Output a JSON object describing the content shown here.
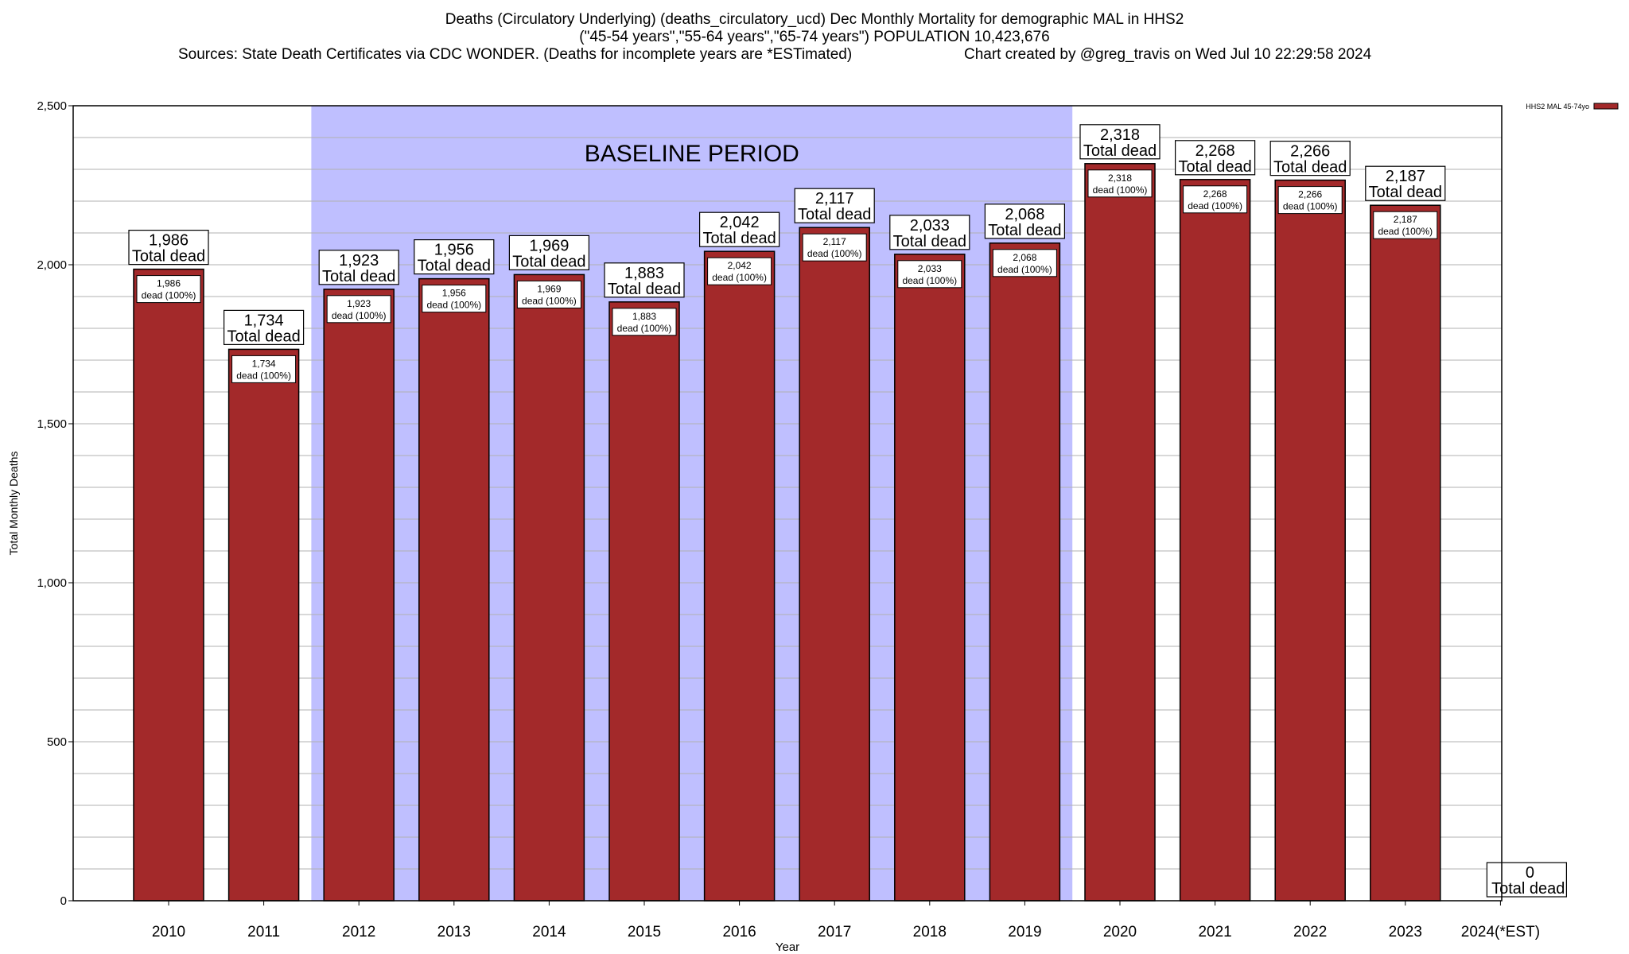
{
  "title": {
    "line1": "Deaths (Circulatory Underlying) (deaths_circulatory_ucd) Dec Monthly Mortality for demographic MAL in HHS2",
    "line2": "(\"45-54 years\",\"55-64 years\",\"65-74 years\") POPULATION 10,423,676",
    "line3_left": "Sources: State Death Certificates via CDC WONDER. (Deaths for incomplete years are *ESTimated)",
    "line3_right": "Chart created by @greg_travis on Wed Jul 10 22:29:58 2024"
  },
  "chart_data": {
    "type": "bar",
    "xlabel": "Year",
    "ylabel": "Total Monthly Deaths",
    "ylim": [
      0,
      2500
    ],
    "yticks": [
      {
        "value": 0,
        "label": "0"
      },
      {
        "value": 500,
        "label": "500"
      },
      {
        "value": 1000,
        "label": "1,000"
      },
      {
        "value": 1500,
        "label": "1,500"
      },
      {
        "value": 2000,
        "label": "2,000"
      },
      {
        "value": 2500,
        "label": "2,500"
      }
    ],
    "minor_grid_step": 100,
    "grid": true,
    "categories": [
      "2010",
      "2011",
      "2012",
      "2013",
      "2014",
      "2015",
      "2016",
      "2017",
      "2018",
      "2019",
      "2020",
      "2021",
      "2022",
      "2023",
      "2024(*EST)"
    ],
    "series": [
      {
        "name": "HHS2 MAL 45-74yo",
        "color": "#a3292a",
        "values": [
          1986,
          1734,
          1923,
          1956,
          1969,
          1883,
          2042,
          2117,
          2033,
          2068,
          2318,
          2268,
          2266,
          2187,
          0
        ]
      }
    ],
    "top_labels": [
      {
        "value": "1,986",
        "text": "Total dead"
      },
      {
        "value": "1,734",
        "text": "Total dead"
      },
      {
        "value": "1,923",
        "text": "Total dead"
      },
      {
        "value": "1,956",
        "text": "Total dead"
      },
      {
        "value": "1,969",
        "text": "Total dead"
      },
      {
        "value": "1,883",
        "text": "Total dead"
      },
      {
        "value": "2,042",
        "text": "Total dead"
      },
      {
        "value": "2,117",
        "text": "Total dead"
      },
      {
        "value": "2,033",
        "text": "Total dead"
      },
      {
        "value": "2,068",
        "text": "Total dead"
      },
      {
        "value": "2,318",
        "text": "Total dead"
      },
      {
        "value": "2,268",
        "text": "Total dead"
      },
      {
        "value": "2,266",
        "text": "Total dead"
      },
      {
        "value": "2,187",
        "text": "Total dead"
      },
      {
        "value": "0",
        "text": "Total dead"
      }
    ],
    "inner_labels": [
      {
        "value": "1,986",
        "text": "dead (100%)"
      },
      {
        "value": "1,734",
        "text": "dead (100%)"
      },
      {
        "value": "1,923",
        "text": "dead (100%)"
      },
      {
        "value": "1,956",
        "text": "dead (100%)"
      },
      {
        "value": "1,969",
        "text": "dead (100%)"
      },
      {
        "value": "1,883",
        "text": "dead (100%)"
      },
      {
        "value": "2,042",
        "text": "dead (100%)"
      },
      {
        "value": "2,117",
        "text": "dead (100%)"
      },
      {
        "value": "2,033",
        "text": "dead (100%)"
      },
      {
        "value": "2,068",
        "text": "dead (100%)"
      },
      {
        "value": "2,318",
        "text": "dead (100%)"
      },
      {
        "value": "2,268",
        "text": "dead (100%)"
      },
      {
        "value": "2,266",
        "text": "dead (100%)"
      },
      {
        "value": "2,187",
        "text": "dead (100%)"
      }
    ],
    "baseline": {
      "label": "BASELINE PERIOD",
      "from": "2012",
      "to": "2019",
      "color": "#bfbfff"
    },
    "legend": {
      "placement": "top-right",
      "label": "HHS2 MAL 45-74yo"
    }
  }
}
